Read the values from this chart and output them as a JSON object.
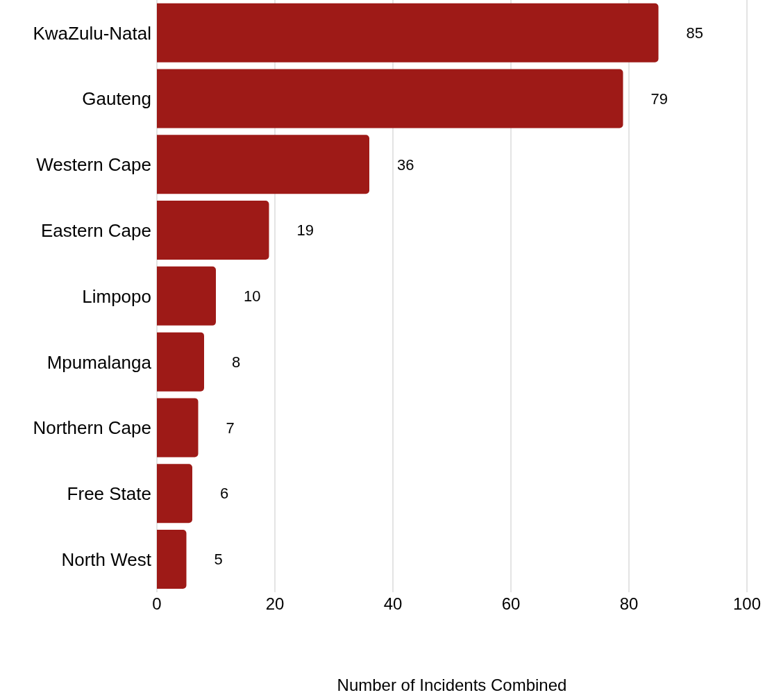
{
  "chart_data": {
    "type": "bar",
    "orientation": "horizontal",
    "xlabel": "Number of Incidents Combined",
    "categories": [
      "KwaZulu-Natal",
      "Gauteng",
      "Western Cape",
      "Eastern Cape",
      "Limpopo",
      "Mpumalanga",
      "Northern Cape",
      "Free State",
      "North West"
    ],
    "values": [
      85,
      79,
      36,
      19,
      10,
      8,
      7,
      6,
      5
    ],
    "color": "#9e1a17",
    "xlim": [
      0,
      100
    ],
    "xticks": [
      0,
      20,
      40,
      60,
      80,
      100
    ],
    "grid": "x",
    "data_labels": true
  }
}
